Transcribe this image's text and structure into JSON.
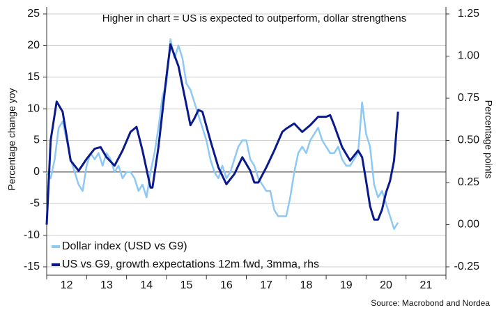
{
  "chart_data": {
    "type": "line",
    "title": "Higher in chart = US is expected to outperform, dollar strengthens",
    "ylabel": "Percentage change yoy",
    "y2label": "Percentage points",
    "source": "Source: Macrobond and Nordea",
    "xlim": [
      12,
      22
    ],
    "xticks": [
      {
        "value": 12,
        "label": "12"
      },
      {
        "value": 13,
        "label": "13"
      },
      {
        "value": 14,
        "label": "14"
      },
      {
        "value": 15,
        "label": "15"
      },
      {
        "value": 16,
        "label": "16"
      },
      {
        "value": 17,
        "label": "17"
      },
      {
        "value": 18,
        "label": "18"
      },
      {
        "value": 19,
        "label": "19"
      },
      {
        "value": 20,
        "label": "20"
      },
      {
        "value": 21,
        "label": "21"
      }
    ],
    "ylim": [
      -15,
      25
    ],
    "yticks": [
      -15,
      -10,
      -5,
      0,
      5,
      10,
      15,
      20,
      25
    ],
    "y2lim": [
      -0.25,
      1.25
    ],
    "y2ticks": [
      -0.25,
      {
        "value": 0,
        "label": "0.00"
      },
      0.25,
      {
        "value": 0.5,
        "label": "0.50"
      },
      0.75,
      {
        "value": 1,
        "label": "1.00"
      },
      1.25
    ],
    "grid": true,
    "legend": "lower left",
    "series": [
      {
        "name": "Dollar index (USD vs G9)",
        "color": "#8ec8f5",
        "x": [
          12.0,
          12.1,
          12.2,
          12.3,
          12.4,
          12.5,
          12.6,
          12.7,
          12.8,
          12.9,
          13.0,
          13.1,
          13.2,
          13.3,
          13.4,
          13.5,
          13.6,
          13.7,
          13.8,
          13.9,
          14.0,
          14.1,
          14.2,
          14.3,
          14.4,
          14.5,
          14.6,
          14.7,
          14.8,
          14.9,
          15.0,
          15.1,
          15.2,
          15.3,
          15.4,
          15.5,
          15.6,
          15.7,
          15.8,
          15.9,
          16.0,
          16.1,
          16.2,
          16.3,
          16.4,
          16.5,
          16.6,
          16.7,
          16.8,
          16.9,
          17.0,
          17.1,
          17.2,
          17.3,
          17.4,
          17.5,
          17.6,
          17.7,
          17.8,
          17.9,
          18.0,
          18.1,
          18.2,
          18.3,
          18.4,
          18.5,
          18.6,
          18.7,
          18.8,
          18.9,
          19.0,
          19.1,
          19.2,
          19.3,
          19.4,
          19.5,
          19.6,
          19.7,
          19.8,
          19.9,
          20.0,
          20.1,
          20.2,
          20.3,
          20.4,
          20.5,
          20.6,
          20.7,
          20.8
        ],
        "values": [
          0,
          -1,
          2,
          7,
          8,
          5,
          2,
          0,
          -2,
          -3,
          1,
          3,
          2,
          3,
          1,
          3,
          2,
          0,
          1,
          -1,
          0,
          0,
          -1,
          -3,
          -2,
          -4,
          0,
          3,
          7,
          12,
          14,
          21,
          18,
          20,
          18,
          14,
          13,
          11,
          9,
          7,
          5,
          2,
          0,
          -1,
          1,
          -1,
          0,
          2,
          4,
          5,
          5,
          2,
          1,
          -1,
          -2,
          -3,
          -3,
          -6,
          -7,
          -7,
          -7,
          -4,
          0,
          3,
          4,
          3,
          5,
          6,
          7,
          5,
          4,
          3,
          3,
          4,
          2,
          1,
          1,
          2,
          3,
          11,
          6,
          4,
          -2,
          -4,
          -3,
          -5,
          -7,
          -9,
          -8
        ]
      },
      {
        "name": "US vs G9, growth expectations 12m fwd, 3mma, rhs",
        "color": "#0a1a8c",
        "axis": "y2",
        "x": [
          12.0,
          12.1,
          12.25,
          12.4,
          12.6,
          12.8,
          13.0,
          13.2,
          13.35,
          13.5,
          13.7,
          13.9,
          14.1,
          14.25,
          14.4,
          14.6,
          14.65,
          14.8,
          15.0,
          15.1,
          15.3,
          15.5,
          15.6,
          15.7,
          15.8,
          15.9,
          16.1,
          16.3,
          16.5,
          16.7,
          16.9,
          17.1,
          17.2,
          17.3,
          17.5,
          17.7,
          17.9,
          18.0,
          18.2,
          18.4,
          18.6,
          18.8,
          19.0,
          19.1,
          19.2,
          19.4,
          19.6,
          19.8,
          19.9,
          20.0,
          20.1,
          20.2,
          20.3,
          20.4,
          20.5,
          20.6,
          20.7,
          20.8
        ],
        "values": [
          0.0,
          0.5,
          0.73,
          0.67,
          0.38,
          0.32,
          0.39,
          0.45,
          0.46,
          0.4,
          0.35,
          0.44,
          0.55,
          0.58,
          0.44,
          0.22,
          0.22,
          0.46,
          0.88,
          1.07,
          0.94,
          0.71,
          0.59,
          0.63,
          0.68,
          0.67,
          0.5,
          0.34,
          0.24,
          0.3,
          0.4,
          0.32,
          0.25,
          0.25,
          0.34,
          0.44,
          0.55,
          0.57,
          0.6,
          0.55,
          0.59,
          0.64,
          0.64,
          0.65,
          0.59,
          0.46,
          0.38,
          0.44,
          0.4,
          0.26,
          0.11,
          0.03,
          0.03,
          0.09,
          0.19,
          0.26,
          0.38,
          0.67
        ]
      }
    ]
  }
}
